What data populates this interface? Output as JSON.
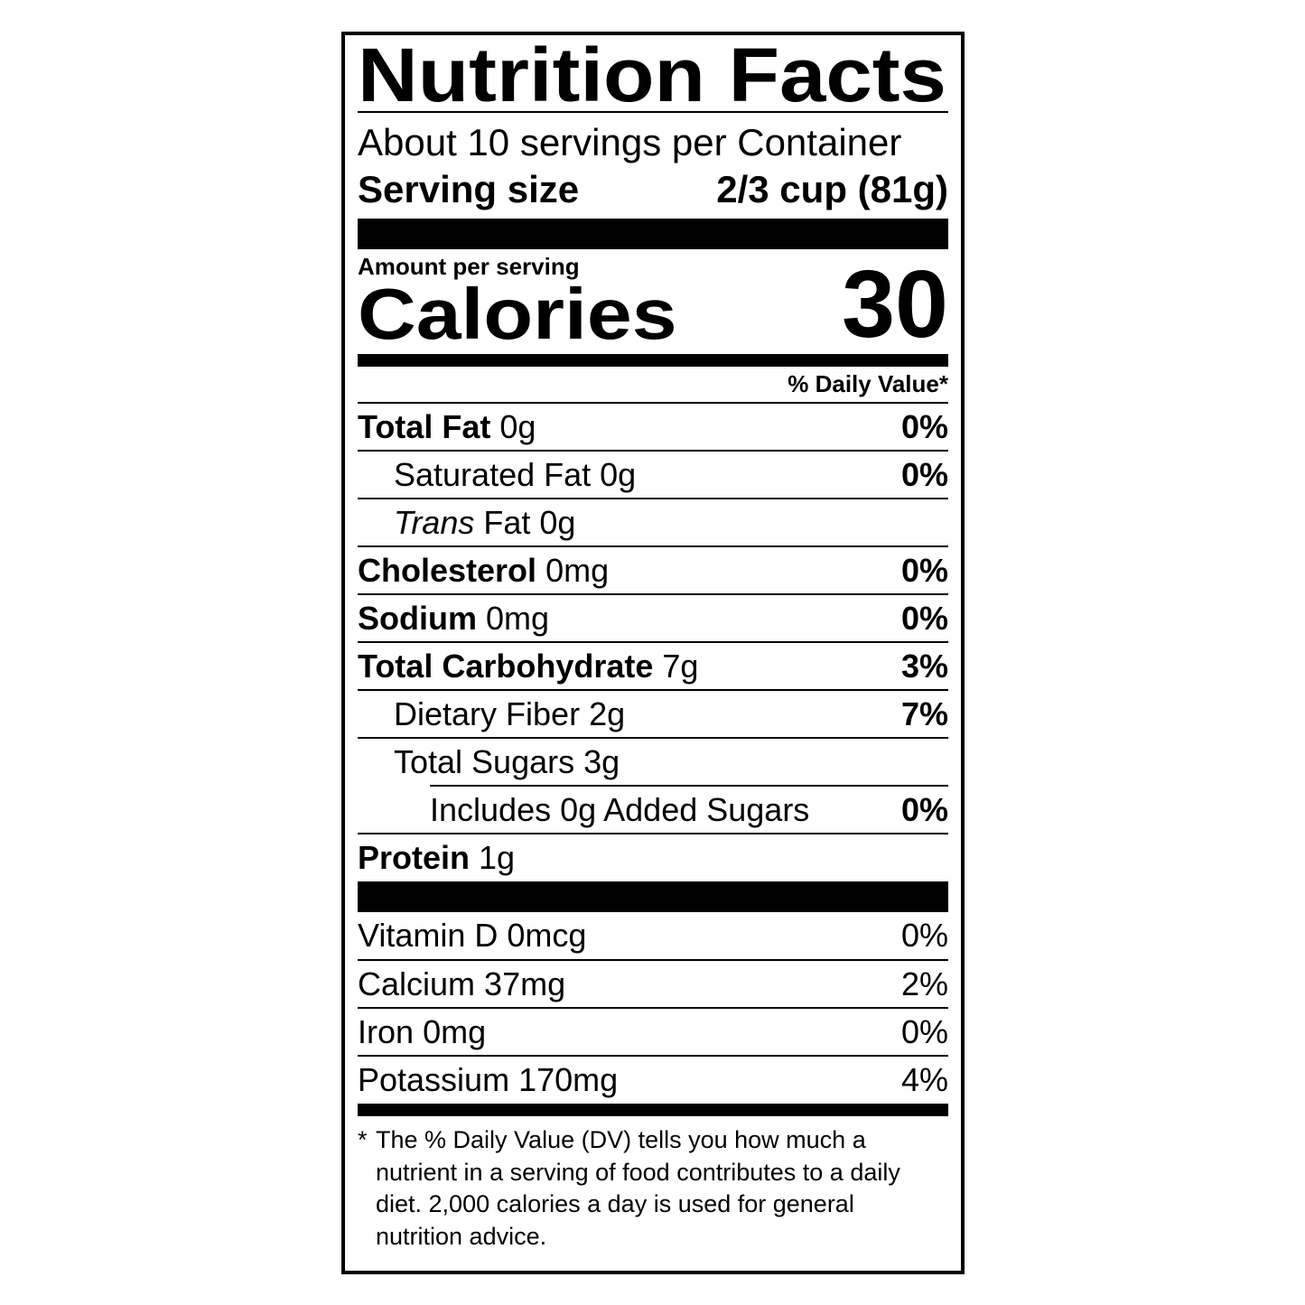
{
  "title": "Nutrition Facts",
  "servings_per_container": "About 10 servings per Container",
  "serving_size": {
    "label": "Serving size",
    "value": "2/3 cup (81g)"
  },
  "amount_per_serving": "Amount per serving",
  "calories": {
    "label": "Calories",
    "value": "30"
  },
  "daily_value_header": "% Daily Value*",
  "nutrients": [
    {
      "name": "Total Fat",
      "amount": "0g",
      "dv": "0%"
    },
    {
      "name": "Saturated Fat",
      "amount": "0g",
      "dv": "0%"
    },
    {
      "name_italic": "Trans",
      "name": "Fat",
      "amount": "0g",
      "dv": ""
    },
    {
      "name": "Cholesterol",
      "amount": "0mg",
      "dv": "0%"
    },
    {
      "name": "Sodium",
      "amount": "0mg",
      "dv": "0%"
    },
    {
      "name": "Total Carbohydrate",
      "amount": "7g",
      "dv": "3%"
    },
    {
      "name": "Dietary Fiber",
      "amount": "2g",
      "dv": "7%"
    },
    {
      "name": "Total Sugars",
      "amount": "3g",
      "dv": ""
    },
    {
      "name": "Includes 0g Added Sugars",
      "amount": "",
      "dv": "0%"
    },
    {
      "name": "Protein",
      "amount": "1g",
      "dv": ""
    }
  ],
  "vitamins": [
    {
      "name": "Vitamin D",
      "amount": "0mcg",
      "dv": "0%"
    },
    {
      "name": "Calcium",
      "amount": "37mg",
      "dv": "2%"
    },
    {
      "name": "Iron",
      "amount": "0mg",
      "dv": "0%"
    },
    {
      "name": "Potassium",
      "amount": "170mg",
      "dv": "4%"
    }
  ],
  "footnote": {
    "star": "*",
    "text": "The % Daily Value (DV) tells you how much a nutrient in a serving of food contributes to a daily diet. 2,000 calories a day is used for general nutrition advice."
  }
}
